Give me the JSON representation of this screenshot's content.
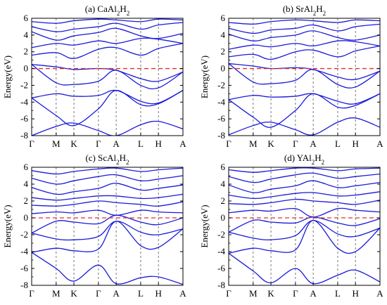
{
  "figure": {
    "colors": {
      "band": "#1a1adb",
      "fermi": "#e0302a",
      "frame": "#000000",
      "kline": "#555555"
    }
  },
  "chart_data": [
    {
      "type": "line",
      "title_parts": [
        "(a) CaAl",
        "2",
        "H",
        "2"
      ],
      "ylabel": "Energy(eV)",
      "ylim": [
        -8,
        6
      ],
      "yticks": [
        -8,
        -6,
        -4,
        -2,
        0,
        2,
        4,
        6
      ],
      "kpoints": [
        "Γ",
        "M",
        "K",
        "Γ",
        "A",
        "L",
        "H",
        "A"
      ],
      "kpath": [
        0,
        0.58,
        1.0,
        1.58,
        2.0,
        2.58,
        3.0,
        3.58
      ],
      "fermi_level": 0,
      "series": [
        {
          "x": [
            0,
            0.58,
            1.0,
            1.58,
            2.0,
            2.58,
            3.0,
            3.58
          ],
          "y": [
            -8.0,
            -6.9,
            -6.5,
            -7.4,
            -8.0,
            -6.7,
            -6.3,
            -7.2
          ]
        },
        {
          "x": [
            0,
            0.58,
            1.0,
            1.58,
            2.0,
            2.58,
            3.0,
            3.58
          ],
          "y": [
            -3.5,
            -5.6,
            -6.8,
            -4.8,
            -2.6,
            -4.3,
            -4.2,
            -2.6
          ]
        },
        {
          "x": [
            0,
            0.58,
            1.0,
            1.58,
            2.0,
            2.58,
            3.0,
            3.58
          ],
          "y": [
            -3.5,
            -3.0,
            -3.3,
            -3.2,
            -2.6,
            -3.9,
            -4.1,
            -2.6
          ]
        },
        {
          "x": [
            0,
            0.58,
            1.0,
            1.58,
            2.0,
            2.58,
            3.0,
            3.58
          ],
          "y": [
            0.5,
            -1.7,
            -1.9,
            -1.5,
            -0.2,
            -2.0,
            -2.3,
            -0.4
          ]
        },
        {
          "x": [
            0,
            0.58,
            1.0,
            1.58,
            2.0,
            2.58,
            3.0,
            3.58
          ],
          "y": [
            0.5,
            0.2,
            -0.1,
            0.0,
            -0.2,
            -1.2,
            -1.5,
            -0.4
          ]
        },
        {
          "x": [
            0,
            0.58,
            1.0,
            1.58,
            2.0,
            2.58,
            3.0,
            3.58
          ],
          "y": [
            1.6,
            1.9,
            1.2,
            2.3,
            2.5,
            1.6,
            2.4,
            3.0
          ]
        },
        {
          "x": [
            0,
            0.58,
            1.0,
            1.58,
            2.0,
            2.58,
            3.0,
            3.58
          ],
          "y": [
            2.5,
            3.0,
            2.8,
            3.3,
            3.0,
            3.6,
            3.5,
            3.0
          ]
        },
        {
          "x": [
            0,
            0.58,
            1.0,
            1.58,
            2.0,
            2.58,
            3.0,
            3.58
          ],
          "y": [
            4.4,
            3.4,
            3.9,
            4.3,
            4.8,
            3.9,
            3.6,
            4.2
          ]
        },
        {
          "x": [
            0,
            0.58,
            1.0,
            1.58,
            2.0,
            2.58,
            3.0,
            3.58
          ],
          "y": [
            5.0,
            4.4,
            4.7,
            5.0,
            5.4,
            4.7,
            5.2,
            5.5
          ]
        },
        {
          "x": [
            0,
            0.58,
            1.0,
            1.58,
            2.0,
            2.58,
            3.0,
            3.58
          ],
          "y": [
            5.6,
            5.4,
            5.7,
            5.9,
            5.8,
            5.6,
            5.9,
            5.8
          ]
        }
      ]
    },
    {
      "type": "line",
      "title_parts": [
        "(b) SrAl",
        "2",
        "H",
        "2"
      ],
      "ylabel": "Energy(eV)",
      "ylim": [
        -8,
        6
      ],
      "yticks": [
        -8,
        -6,
        -4,
        -2,
        0,
        2,
        4,
        6
      ],
      "kpoints": [
        "Γ",
        "M",
        "K",
        "Γ",
        "A",
        "L",
        "H",
        "A"
      ],
      "kpath": [
        0,
        0.58,
        1.0,
        1.58,
        2.0,
        2.58,
        3.0,
        3.58
      ],
      "fermi_level": 0,
      "series": [
        {
          "x": [
            0,
            0.58,
            1.0,
            1.58,
            2.0,
            2.58,
            3.0,
            3.58
          ],
          "y": [
            -7.9,
            -6.8,
            -6.4,
            -7.3,
            -7.9,
            -6.4,
            -5.9,
            -7.0
          ]
        },
        {
          "x": [
            0,
            0.58,
            1.0,
            1.58,
            2.0,
            2.58,
            3.0,
            3.58
          ],
          "y": [
            -3.7,
            -5.8,
            -7.0,
            -5.0,
            -3.0,
            -4.6,
            -4.4,
            -3.0
          ]
        },
        {
          "x": [
            0,
            0.58,
            1.0,
            1.58,
            2.0,
            2.58,
            3.0,
            3.58
          ],
          "y": [
            -3.7,
            -3.2,
            -3.4,
            -3.3,
            -3.0,
            -3.9,
            -4.2,
            -3.0
          ]
        },
        {
          "x": [
            0,
            0.58,
            1.0,
            1.58,
            2.0,
            2.58,
            3.0,
            3.58
          ],
          "y": [
            0.6,
            -1.6,
            -1.8,
            -1.4,
            -0.1,
            -1.9,
            -2.2,
            -0.3
          ]
        },
        {
          "x": [
            0,
            0.58,
            1.0,
            1.58,
            2.0,
            2.58,
            3.0,
            3.58
          ],
          "y": [
            0.6,
            0.3,
            0.0,
            0.1,
            -0.1,
            -1.0,
            -1.3,
            -0.3
          ]
        },
        {
          "x": [
            0,
            0.58,
            1.0,
            1.58,
            2.0,
            2.58,
            3.0,
            3.58
          ],
          "y": [
            1.4,
            1.7,
            1.1,
            2.0,
            2.2,
            1.4,
            2.1,
            2.7
          ]
        },
        {
          "x": [
            0,
            0.58,
            1.0,
            1.58,
            2.0,
            2.58,
            3.0,
            3.58
          ],
          "y": [
            2.3,
            2.8,
            2.6,
            3.0,
            2.7,
            3.3,
            3.2,
            2.7
          ]
        },
        {
          "x": [
            0,
            0.58,
            1.0,
            1.58,
            2.0,
            2.58,
            3.0,
            3.58
          ],
          "y": [
            4.1,
            3.3,
            3.7,
            4.0,
            4.5,
            3.7,
            3.4,
            4.0
          ]
        },
        {
          "x": [
            0,
            0.58,
            1.0,
            1.58,
            2.0,
            2.58,
            3.0,
            3.58
          ],
          "y": [
            4.8,
            4.2,
            4.6,
            4.8,
            5.2,
            4.5,
            5.0,
            5.3
          ]
        },
        {
          "x": [
            0,
            0.58,
            1.0,
            1.58,
            2.0,
            2.58,
            3.0,
            3.58
          ],
          "y": [
            5.5,
            5.3,
            5.6,
            5.8,
            5.7,
            5.5,
            5.8,
            5.7
          ]
        }
      ]
    },
    {
      "type": "line",
      "title_parts": [
        "(c) ScAl",
        "2",
        "H",
        "2"
      ],
      "ylabel": "Energy(eV)",
      "ylim": [
        -8,
        6
      ],
      "yticks": [
        -8,
        -6,
        -4,
        -2,
        0,
        2,
        4,
        6
      ],
      "kpoints": [
        "Γ",
        "M",
        "K",
        "Γ",
        "A",
        "L",
        "H",
        "A"
      ],
      "kpath": [
        0,
        0.58,
        1.0,
        1.58,
        2.0,
        2.58,
        3.0,
        3.58
      ],
      "fermi_level": 0,
      "series": [
        {
          "x": [
            0,
            0.58,
            1.0,
            1.58,
            2.0,
            2.58,
            3.0,
            3.58
          ],
          "y": [
            -4.1,
            -6.0,
            -7.5,
            -5.6,
            -7.8,
            -7.1,
            -7.0,
            -7.9
          ]
        },
        {
          "x": [
            0,
            0.58,
            1.0,
            1.58,
            2.0,
            2.58,
            3.0,
            3.58
          ],
          "y": [
            -4.1,
            -3.6,
            -3.9,
            -3.7,
            -0.4,
            -3.3,
            -3.5,
            -1.3
          ]
        },
        {
          "x": [
            0,
            0.58,
            1.0,
            1.58,
            2.0,
            2.58,
            3.0,
            3.58
          ],
          "y": [
            -1.8,
            -2.5,
            -2.6,
            -2.2,
            -0.4,
            -1.7,
            -2.0,
            -1.3
          ]
        },
        {
          "x": [
            0,
            0.58,
            1.0,
            1.58,
            2.0,
            2.58,
            3.0,
            3.58
          ],
          "y": [
            -1.8,
            -0.4,
            -0.5,
            -0.7,
            0.3,
            -0.5,
            -0.8,
            0.0
          ]
        },
        {
          "x": [
            0,
            0.58,
            1.0,
            1.58,
            2.0,
            2.58,
            3.0,
            3.58
          ],
          "y": [
            0.5,
            0.7,
            0.6,
            0.9,
            0.3,
            0.9,
            0.7,
            0.6
          ]
        },
        {
          "x": [
            0,
            0.58,
            1.0,
            1.58,
            2.0,
            2.58,
            3.0,
            3.58
          ],
          "y": [
            1.5,
            1.4,
            1.6,
            2.0,
            1.8,
            1.6,
            1.4,
            1.9
          ]
        },
        {
          "x": [
            0,
            0.58,
            1.0,
            1.58,
            2.0,
            2.58,
            3.0,
            3.58
          ],
          "y": [
            2.4,
            2.1,
            2.3,
            2.6,
            2.6,
            2.3,
            2.4,
            2.8
          ]
        },
        {
          "x": [
            0,
            0.58,
            1.0,
            1.58,
            2.0,
            2.58,
            3.0,
            3.58
          ],
          "y": [
            3.6,
            2.8,
            3.1,
            3.5,
            4.1,
            3.3,
            3.5,
            3.9
          ]
        },
        {
          "x": [
            0,
            0.58,
            1.0,
            1.58,
            2.0,
            2.58,
            3.0,
            3.58
          ],
          "y": [
            4.7,
            4.0,
            4.4,
            4.9,
            5.1,
            4.4,
            4.6,
            5.0
          ]
        },
        {
          "x": [
            0,
            0.58,
            1.0,
            1.58,
            2.0,
            2.58,
            3.0,
            3.58
          ],
          "y": [
            5.6,
            5.2,
            5.5,
            5.8,
            5.9,
            5.5,
            5.7,
            5.9
          ]
        }
      ]
    },
    {
      "type": "line",
      "title_parts": [
        "(d) YAl",
        "2",
        "H",
        "2"
      ],
      "ylabel": "Energy(eV)",
      "ylim": [
        -8,
        6
      ],
      "yticks": [
        -8,
        -6,
        -4,
        -2,
        0,
        2,
        4,
        6
      ],
      "kpoints": [
        "Γ",
        "M",
        "K",
        "Γ",
        "A",
        "L",
        "H",
        "A"
      ],
      "kpath": [
        0,
        0.58,
        1.0,
        1.58,
        2.0,
        2.58,
        3.0,
        3.58
      ],
      "fermi_level": 0,
      "series": [
        {
          "x": [
            0,
            0.58,
            1.0,
            1.58,
            2.0,
            2.58,
            3.0,
            3.58
          ],
          "y": [
            -4.2,
            -6.3,
            -7.7,
            -6.0,
            -7.8,
            -6.8,
            -6.2,
            -7.6
          ]
        },
        {
          "x": [
            0,
            0.58,
            1.0,
            1.58,
            2.0,
            2.58,
            3.0,
            3.58
          ],
          "y": [
            -4.2,
            -3.6,
            -3.9,
            -3.8,
            -0.3,
            -3.6,
            -4.0,
            -1.2
          ]
        },
        {
          "x": [
            0,
            0.58,
            1.0,
            1.58,
            2.0,
            2.58,
            3.0,
            3.58
          ],
          "y": [
            -1.7,
            -2.4,
            -2.6,
            -2.1,
            -0.3,
            -1.9,
            -2.2,
            -1.2
          ]
        },
        {
          "x": [
            0,
            0.58,
            1.0,
            1.58,
            2.0,
            2.58,
            3.0,
            3.58
          ],
          "y": [
            -1.7,
            -0.3,
            -0.5,
            -0.6,
            0.1,
            -0.6,
            -0.9,
            -0.1
          ]
        },
        {
          "x": [
            0,
            0.58,
            1.0,
            1.58,
            2.0,
            2.58,
            3.0,
            3.58
          ],
          "y": [
            0.6,
            0.9,
            0.8,
            1.1,
            0.1,
            1.1,
            0.9,
            0.7
          ]
        },
        {
          "x": [
            0,
            0.58,
            1.0,
            1.58,
            2.0,
            2.58,
            3.0,
            3.58
          ],
          "y": [
            1.7,
            1.6,
            1.8,
            2.2,
            2.0,
            1.8,
            1.6,
            2.1
          ]
        },
        {
          "x": [
            0,
            0.58,
            1.0,
            1.58,
            2.0,
            2.58,
            3.0,
            3.58
          ],
          "y": [
            2.7,
            2.3,
            2.5,
            2.9,
            3.0,
            2.6,
            2.7,
            3.1
          ]
        },
        {
          "x": [
            0,
            0.58,
            1.0,
            1.58,
            2.0,
            2.58,
            3.0,
            3.58
          ],
          "y": [
            3.9,
            3.0,
            3.4,
            3.8,
            4.4,
            3.6,
            3.8,
            4.2
          ]
        },
        {
          "x": [
            0,
            0.58,
            1.0,
            1.58,
            2.0,
            2.58,
            3.0,
            3.58
          ],
          "y": [
            4.9,
            4.2,
            4.6,
            5.1,
            5.3,
            4.7,
            4.9,
            5.2
          ]
        },
        {
          "x": [
            0,
            0.58,
            1.0,
            1.58,
            2.0,
            2.58,
            3.0,
            3.58
          ],
          "y": [
            5.7,
            5.4,
            5.6,
            5.9,
            5.9,
            5.6,
            5.8,
            5.9
          ]
        }
      ]
    }
  ]
}
